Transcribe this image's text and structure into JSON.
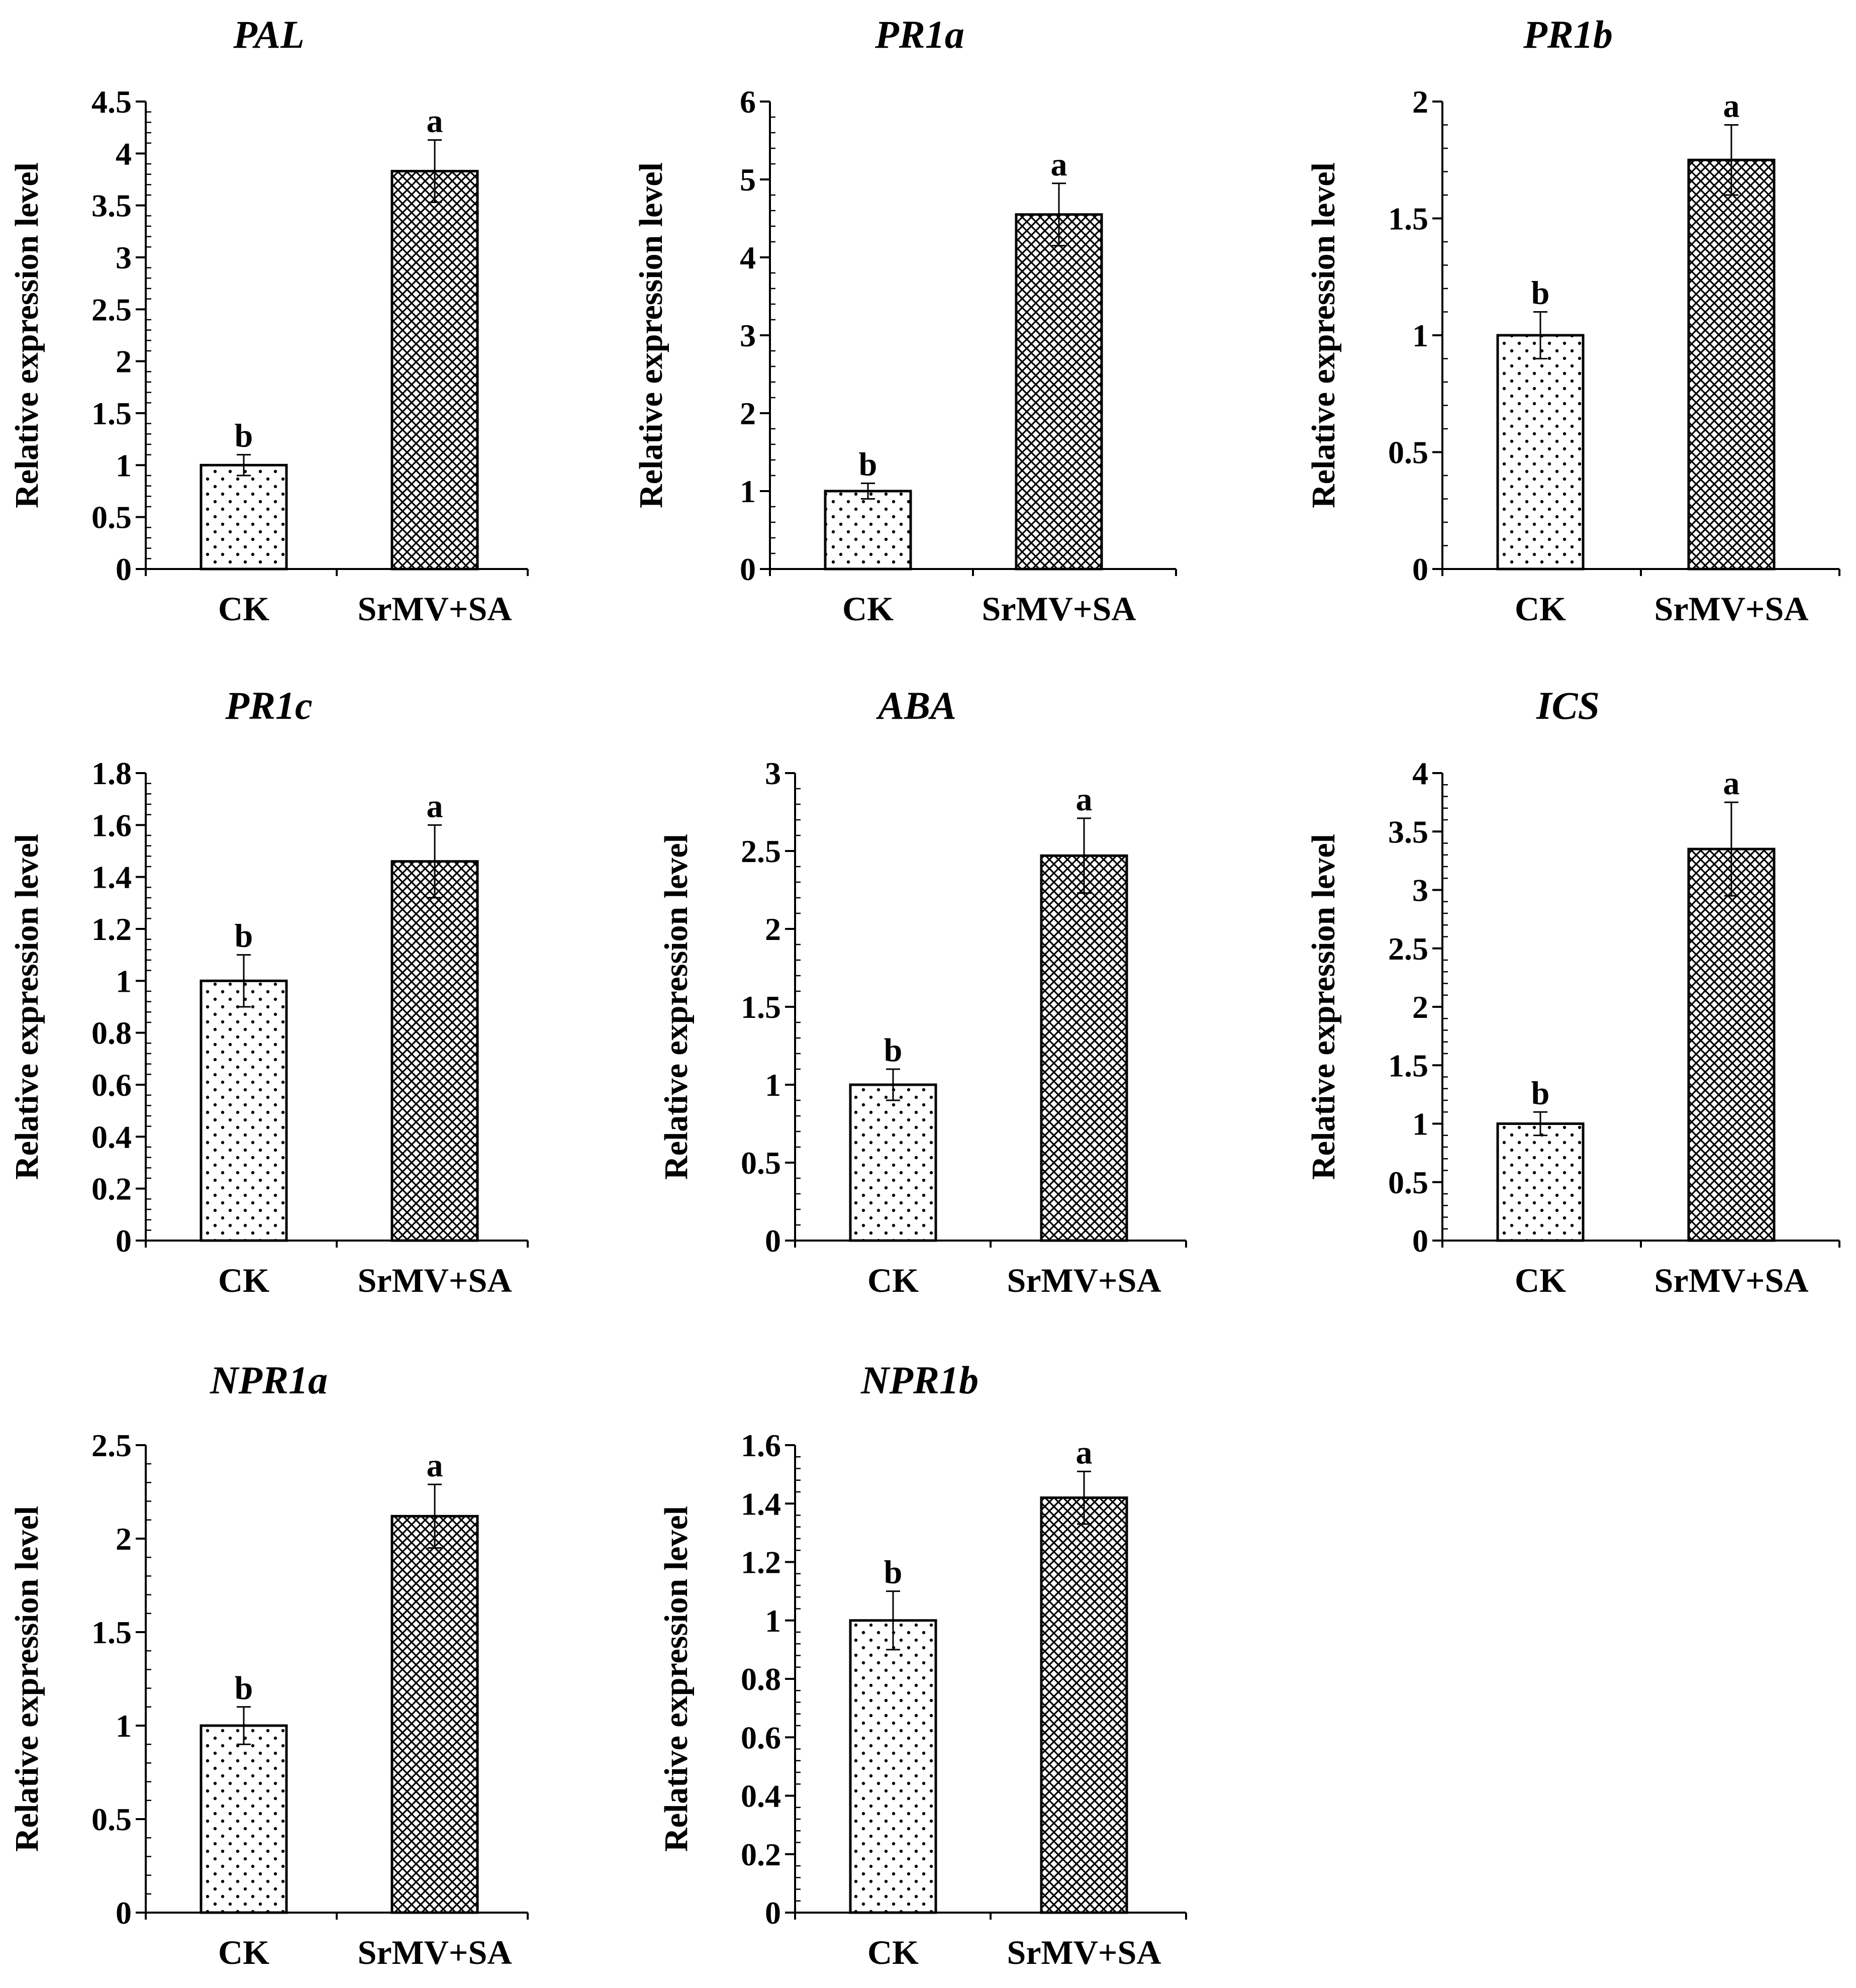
{
  "chart_data": [
    {
      "type": "bar",
      "title": "PAL",
      "ylabel": "Relative expression level",
      "ylim": [
        0,
        4.5
      ],
      "yticks": [
        "0",
        "0.5",
        "1",
        "1.5",
        "2",
        "2.5",
        "3",
        "3.5",
        "4",
        "4.5"
      ],
      "categories": [
        "CK",
        "SrMV+SA"
      ],
      "values": [
        1.0,
        3.83
      ],
      "errors": [
        0.1,
        0.3
      ],
      "significance": [
        "b",
        "a"
      ]
    },
    {
      "type": "bar",
      "title": "PR1a",
      "ylabel": "Relative expression level",
      "ylim": [
        0,
        6
      ],
      "yticks": [
        "0",
        "1",
        "2",
        "3",
        "4",
        "5",
        "6"
      ],
      "categories": [
        "CK",
        "SrMV+SA"
      ],
      "values": [
        1.0,
        4.55
      ],
      "errors": [
        0.1,
        0.4
      ],
      "significance": [
        "b",
        "a"
      ]
    },
    {
      "type": "bar",
      "title": "PR1b",
      "ylabel": "Relative expression level",
      "ylim": [
        0,
        2
      ],
      "yticks": [
        "0",
        "0.5",
        "1",
        "1.5",
        "2"
      ],
      "categories": [
        "CK",
        "SrMV+SA"
      ],
      "values": [
        1.0,
        1.75
      ],
      "errors": [
        0.1,
        0.15
      ],
      "significance": [
        "b",
        "a"
      ]
    },
    {
      "type": "bar",
      "title": "PR1c",
      "ylabel": "Relative expression level",
      "ylim": [
        0,
        1.8
      ],
      "yticks": [
        "0",
        "0.2",
        "0.4",
        "0.6",
        "0.8",
        "1",
        "1.2",
        "1.4",
        "1.6",
        "1.8"
      ],
      "categories": [
        "CK",
        "SrMV+SA"
      ],
      "values": [
        1.0,
        1.46
      ],
      "errors": [
        0.1,
        0.14
      ],
      "significance": [
        "b",
        "a"
      ]
    },
    {
      "type": "bar",
      "title": "ABA",
      "ylabel": "Relative expression level",
      "ylim": [
        0,
        3
      ],
      "yticks": [
        "0",
        "0.5",
        "1",
        "1.5",
        "2",
        "2.5",
        "3"
      ],
      "categories": [
        "CK",
        "SrMV+SA"
      ],
      "values": [
        1.0,
        2.47
      ],
      "errors": [
        0.1,
        0.24
      ],
      "significance": [
        "b",
        "a"
      ]
    },
    {
      "type": "bar",
      "title": "ICS",
      "ylabel": "Relative expression level",
      "ylim": [
        0,
        4
      ],
      "yticks": [
        "0",
        "0.5",
        "1",
        "1.5",
        "2",
        "2.5",
        "3",
        "3.5",
        "4"
      ],
      "categories": [
        "CK",
        "SrMV+SA"
      ],
      "values": [
        1.0,
        3.35
      ],
      "errors": [
        0.1,
        0.4
      ],
      "significance": [
        "b",
        "a"
      ]
    },
    {
      "type": "bar",
      "title": "NPR1a",
      "ylabel": "Relative expression level",
      "ylim": [
        0,
        2.5
      ],
      "yticks": [
        "0",
        "0.5",
        "1",
        "1.5",
        "2",
        "2.5"
      ],
      "categories": [
        "CK",
        "SrMV+SA"
      ],
      "values": [
        1.0,
        2.12
      ],
      "errors": [
        0.1,
        0.17
      ],
      "significance": [
        "b",
        "a"
      ]
    },
    {
      "type": "bar",
      "title": "NPR1b",
      "ylabel": "Relative expression level",
      "ylim": [
        0,
        1.6
      ],
      "yticks": [
        "0",
        "0.2",
        "0.4",
        "0.6",
        "0.8",
        "1",
        "1.2",
        "1.4",
        "1.6"
      ],
      "categories": [
        "CK",
        "SrMV+SA"
      ],
      "values": [
        1.0,
        1.42
      ],
      "errors": [
        0.1,
        0.09
      ],
      "significance": [
        "b",
        "a"
      ]
    }
  ]
}
